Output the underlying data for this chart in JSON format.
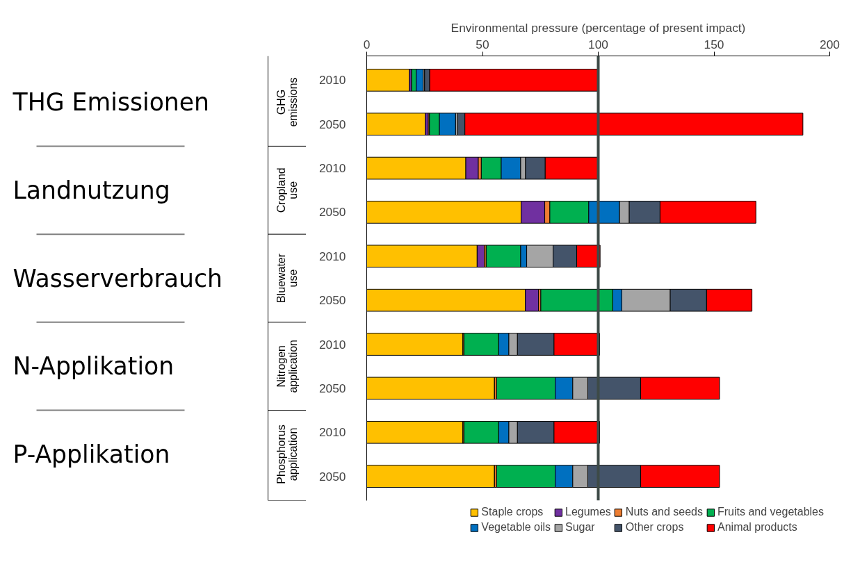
{
  "chart_data": {
    "type": "bar",
    "stacked": true,
    "orientation": "horizontal",
    "xlabel": "Environmental pressure (percentage of present impact)",
    "categories": [
      "2010",
      "2050",
      "2010",
      "2050",
      "2010",
      "2050",
      "2010",
      "2050",
      "2010",
      "2050"
    ],
    "series": [
      {
        "name": "Staple crops",
        "color": "#ffc000",
        "values": [
          18.4,
          25.3,
          42.8,
          66.7,
          47.7,
          68.5,
          41.6,
          55.2,
          41.6,
          55.2
        ]
      },
      {
        "name": "Legumes",
        "color": "#7030a0",
        "values": [
          1,
          1.3,
          5.4,
          10.2,
          3.1,
          5.7,
          0,
          0,
          0,
          0
        ]
      },
      {
        "name": "Nuts and seeds",
        "color": "#ed7d31",
        "values": [
          null,
          0.5,
          1.3,
          2.2,
          0.8,
          1,
          0.4,
          0.9,
          0.4,
          0.9
        ]
      },
      {
        "name": "Fruits and vegetables",
        "color": "#00b050",
        "values": [
          2,
          4.3,
          8.6,
          16.8,
          14.9,
          31.1,
          15,
          25.3,
          15,
          25.3
        ]
      },
      {
        "name": "Vegetable oils",
        "color": "#0070c0",
        "values": [
          3,
          7,
          8.4,
          13.3,
          2.6,
          3.9,
          4.4,
          7.6,
          4.4,
          7.6
        ]
      },
      {
        "name": "Sugar",
        "color": "#a5a5a5",
        "values": [
          0.6,
          0.9,
          2.1,
          4.2,
          11.4,
          20.9,
          3.7,
          6.5,
          3.7,
          6.5
        ]
      },
      {
        "name": "Other crops",
        "color": "#44546a",
        "values": [
          2.2,
          3.1,
          8.5,
          13.3,
          10.2,
          15.7,
          15.8,
          22.8,
          15.8,
          22.8
        ]
      },
      {
        "name": "Animal products",
        "color": "#ff0000",
        "values": [
          72.5,
          146,
          23,
          41.4,
          10.1,
          19.6,
          19.7,
          34.1,
          19.7,
          34.1
        ]
      }
    ],
    "xlim": [
      0,
      200
    ],
    "xticks": [
      0,
      50,
      100,
      150,
      200
    ],
    "grid": false,
    "legend": "bottom",
    "ref_lines": [
      {
        "axis": "x",
        "value": 100,
        "color": "#3d4a47"
      }
    ],
    "annotations": [
      "GHG emissions",
      "Cropland use",
      "Bluewater use",
      "Nitrogen application",
      "Phosphorus application",
      "THG Emissionen",
      "Landnutzung",
      "Wasserverbrauch",
      "N-Applikation",
      "P-Applikation"
    ]
  }
}
